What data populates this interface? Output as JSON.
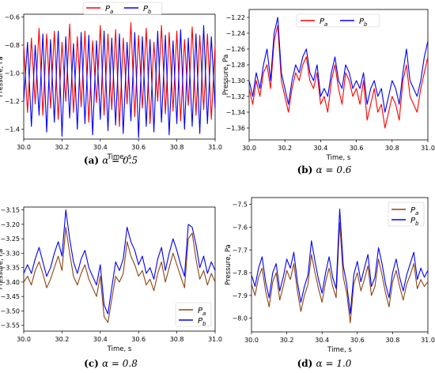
{
  "panels": [
    {
      "caption_tag": "(a)",
      "caption_text": "α = 0.5",
      "legend": [
        "P_a",
        "P_b"
      ],
      "legend_pos": "top-outside",
      "chart_data": {
        "type": "line",
        "xlabel": "Time, s",
        "ylabel": "Pressure, Pa",
        "xlim": [
          30.0,
          31.0
        ],
        "ylim": [
          -1.47,
          -0.58
        ],
        "xticks": [
          30.0,
          30.2,
          30.4,
          30.6,
          30.8,
          31.0
        ],
        "xtick_labels": [
          "30.0",
          "30.2",
          "30.4",
          "30.6",
          "30.8",
          "31.0"
        ],
        "yticks": [
          -1.4,
          -1.2,
          -1.0,
          -0.8,
          -0.6
        ],
        "ytick_labels": [
          "−1.4",
          "−1.2",
          "−1.0",
          "−0.8",
          "−0.6"
        ],
        "x_start": 30.0,
        "x_step": 0.02,
        "series": [
          {
            "name": "P_a",
            "color": "#ff0000",
            "values": [
              -0.8,
              -1.28,
              -0.75,
              -1.22,
              -0.68,
              -1.3,
              -0.72,
              -1.25,
              -0.7,
              -1.33,
              -0.78,
              -1.2,
              -0.65,
              -1.28,
              -0.74,
              -1.24,
              -0.7,
              -1.35,
              -0.77,
              -1.21,
              -0.66,
              -1.3,
              -0.72,
              -1.26,
              -0.69,
              -1.38,
              -0.75,
              -1.22,
              -0.64,
              -1.31,
              -0.73,
              -1.25,
              -0.68,
              -1.36,
              -0.78,
              -1.2,
              -0.66,
              -1.29,
              -0.71,
              -1.27,
              -0.7,
              -1.34,
              -0.76,
              -1.23,
              -0.67,
              -1.3,
              -0.73,
              -1.26,
              -0.72,
              -1.33,
              -0.8
            ]
          },
          {
            "name": "P_b",
            "color": "#0000ff",
            "values": [
              -1.2,
              -0.78,
              -1.38,
              -0.8,
              -1.3,
              -0.72,
              -1.42,
              -0.76,
              -1.35,
              -0.7,
              -1.45,
              -0.74,
              -1.32,
              -0.79,
              -1.4,
              -0.71,
              -1.36,
              -0.73,
              -1.44,
              -0.77,
              -1.33,
              -0.7,
              -1.41,
              -0.75,
              -1.37,
              -0.72,
              -1.43,
              -0.78,
              -1.34,
              -0.71,
              -1.46,
              -0.74,
              -1.38,
              -0.76,
              -1.42,
              -0.7,
              -1.35,
              -0.73,
              -1.44,
              -0.77,
              -1.36,
              -0.69,
              -1.4,
              -0.75,
              -1.38,
              -0.72,
              -1.43,
              -0.66,
              -1.36,
              -0.74,
              -1.25
            ]
          }
        ]
      }
    },
    {
      "caption_tag": "(b)",
      "caption_text": "α = 0.6",
      "legend": [
        "P_a",
        "P_b"
      ],
      "legend_pos": "top-right",
      "chart_data": {
        "type": "line",
        "xlabel": "Time, s",
        "ylabel": "Pressure, Pa",
        "xlim": [
          30.0,
          31.0
        ],
        "ylim": [
          -1.375,
          -1.21
        ],
        "xticks": [
          30.0,
          30.2,
          30.4,
          30.6,
          30.8,
          31.0
        ],
        "xtick_labels": [
          "30.0",
          "30.2",
          "30.4",
          "30.6",
          "30.8",
          "31.0"
        ],
        "yticks": [
          -1.36,
          -1.34,
          -1.32,
          -1.3,
          -1.28,
          -1.26,
          -1.24,
          -1.22
        ],
        "ytick_labels": [
          "−1.36",
          "−1.34",
          "−1.32",
          "−1.30",
          "−1.28",
          "−1.26",
          "−1.24",
          "−1.22"
        ],
        "x_start": 30.0,
        "x_step": 0.02,
        "series": [
          {
            "name": "P_a",
            "color": "#ff0000",
            "values": [
              -1.31,
              -1.33,
              -1.3,
              -1.32,
              -1.29,
              -1.28,
              -1.31,
              -1.25,
              -1.23,
              -1.3,
              -1.32,
              -1.34,
              -1.31,
              -1.29,
              -1.3,
              -1.28,
              -1.27,
              -1.3,
              -1.31,
              -1.29,
              -1.33,
              -1.32,
              -1.34,
              -1.3,
              -1.28,
              -1.31,
              -1.33,
              -1.29,
              -1.3,
              -1.32,
              -1.31,
              -1.33,
              -1.3,
              -1.35,
              -1.33,
              -1.31,
              -1.34,
              -1.33,
              -1.36,
              -1.34,
              -1.32,
              -1.33,
              -1.35,
              -1.3,
              -1.28,
              -1.32,
              -1.33,
              -1.34,
              -1.31,
              -1.29,
              -1.27
            ]
          },
          {
            "name": "P_b",
            "color": "#0000ff",
            "values": [
              -1.3,
              -1.32,
              -1.29,
              -1.31,
              -1.28,
              -1.26,
              -1.3,
              -1.24,
              -1.22,
              -1.29,
              -1.31,
              -1.33,
              -1.3,
              -1.28,
              -1.29,
              -1.27,
              -1.26,
              -1.29,
              -1.3,
              -1.28,
              -1.32,
              -1.31,
              -1.32,
              -1.29,
              -1.27,
              -1.3,
              -1.31,
              -1.28,
              -1.29,
              -1.31,
              -1.3,
              -1.31,
              -1.29,
              -1.33,
              -1.31,
              -1.3,
              -1.32,
              -1.31,
              -1.34,
              -1.32,
              -1.3,
              -1.31,
              -1.33,
              -1.29,
              -1.26,
              -1.3,
              -1.31,
              -1.32,
              -1.3,
              -1.27,
              -1.25
            ]
          }
        ]
      }
    },
    {
      "caption_tag": "(c)",
      "caption_text": "α = 0.8",
      "legend": [
        "P_a",
        "P_b"
      ],
      "legend_pos": "bottom-right",
      "chart_data": {
        "type": "line",
        "xlabel": "Time, s",
        "ylabel": "Pressure, Pa",
        "xlim": [
          30.0,
          31.0
        ],
        "ylim": [
          -3.57,
          -3.14
        ],
        "xticks": [
          30.0,
          30.2,
          30.4,
          30.6,
          30.8,
          31.0
        ],
        "xtick_labels": [
          "30.0",
          "30.2",
          "30.4",
          "30.6",
          "30.8",
          "31.0"
        ],
        "yticks": [
          -3.55,
          -3.5,
          -3.45,
          -3.4,
          -3.35,
          -3.3,
          -3.25,
          -3.2,
          -3.15
        ],
        "ytick_labels": [
          "−3.55",
          "−3.50",
          "−3.45",
          "−3.40",
          "−3.35",
          "−3.30",
          "−3.25",
          "−3.20",
          "−3.15"
        ],
        "x_start": 30.0,
        "x_step": 0.02,
        "series": [
          {
            "name": "P_a",
            "color": "#8b4513",
            "values": [
              -3.4,
              -3.38,
              -3.41,
              -3.36,
              -3.33,
              -3.37,
              -3.42,
              -3.39,
              -3.35,
              -3.31,
              -3.36,
              -3.21,
              -3.3,
              -3.38,
              -3.41,
              -3.37,
              -3.34,
              -3.39,
              -3.42,
              -3.45,
              -3.38,
              -3.52,
              -3.54,
              -3.46,
              -3.38,
              -3.4,
              -3.37,
              -3.26,
              -3.31,
              -3.34,
              -3.38,
              -3.36,
              -3.41,
              -3.39,
              -3.43,
              -3.37,
              -3.33,
              -3.4,
              -3.35,
              -3.3,
              -3.34,
              -3.38,
              -3.42,
              -3.25,
              -3.23,
              -3.32,
              -3.39,
              -3.36,
              -3.41,
              -3.37,
              -3.4
            ]
          },
          {
            "name": "P_b",
            "color": "#0000ff",
            "values": [
              -3.37,
              -3.34,
              -3.37,
              -3.32,
              -3.28,
              -3.33,
              -3.38,
              -3.35,
              -3.3,
              -3.26,
              -3.31,
              -3.15,
              -3.25,
              -3.33,
              -3.37,
              -3.32,
              -3.29,
              -3.35,
              -3.38,
              -3.41,
              -3.34,
              -3.48,
              -3.51,
              -3.42,
              -3.33,
              -3.36,
              -3.32,
              -3.21,
              -3.26,
              -3.29,
              -3.34,
              -3.31,
              -3.37,
              -3.35,
              -3.39,
              -3.32,
              -3.28,
              -3.36,
              -3.3,
              -3.25,
              -3.29,
              -3.34,
              -3.38,
              -3.2,
              -3.21,
              -3.27,
              -3.35,
              -3.31,
              -3.37,
              -3.33,
              -3.36
            ]
          }
        ]
      }
    },
    {
      "caption_tag": "(d)",
      "caption_text": "α = 1.0",
      "legend": [
        "P_a",
        "P_b"
      ],
      "legend_pos": "top-right",
      "chart_data": {
        "type": "line",
        "xlabel": "Time, s",
        "ylabel": "Pressure, Pa",
        "xlim": [
          30.0,
          31.0
        ],
        "ylim": [
          -8.06,
          -7.47
        ],
        "xticks": [
          30.0,
          30.2,
          30.4,
          30.6,
          30.8,
          31.0
        ],
        "xtick_labels": [
          "30.0",
          "30.2",
          "30.4",
          "30.6",
          "30.8",
          "31.0"
        ],
        "yticks": [
          -8.0,
          -7.9,
          -7.8,
          -7.7,
          -7.6,
          -7.5
        ],
        "ytick_labels": [
          "−8.0",
          "−7.9",
          "−7.8",
          "−7.7",
          "−7.6",
          "−7.5"
        ],
        "x_start": 30.0,
        "x_step": 0.02,
        "series": [
          {
            "name": "P_a",
            "color": "#8b4513",
            "values": [
              -7.85,
              -7.9,
              -7.82,
              -7.78,
              -7.88,
              -7.95,
              -7.84,
              -7.8,
              -7.92,
              -7.86,
              -7.79,
              -7.83,
              -7.76,
              -7.88,
              -7.97,
              -7.9,
              -7.85,
              -7.72,
              -7.8,
              -7.87,
              -7.93,
              -7.84,
              -7.78,
              -7.86,
              -7.91,
              -7.58,
              -7.82,
              -7.89,
              -8.02,
              -7.85,
              -7.8,
              -7.88,
              -7.83,
              -7.77,
              -7.9,
              -7.86,
              -7.74,
              -7.81,
              -7.89,
              -7.95,
              -7.84,
              -7.79,
              -7.86,
              -7.92,
              -7.85,
              -7.81,
              -7.76,
              -7.87,
              -7.83,
              -7.86,
              -7.84
            ]
          },
          {
            "name": "P_b",
            "color": "#0000ff",
            "values": [
              -7.81,
              -7.86,
              -7.78,
              -7.73,
              -7.84,
              -7.91,
              -7.8,
              -7.76,
              -7.88,
              -7.82,
              -7.74,
              -7.78,
              -7.71,
              -7.84,
              -7.93,
              -7.86,
              -7.81,
              -7.66,
              -7.75,
              -7.83,
              -7.89,
              -7.8,
              -7.73,
              -7.82,
              -7.87,
              -7.52,
              -7.77,
              -7.85,
              -7.98,
              -7.81,
              -7.75,
              -7.84,
              -7.78,
              -7.72,
              -7.86,
              -7.82,
              -7.69,
              -7.76,
              -7.85,
              -7.91,
              -7.8,
              -7.74,
              -7.82,
              -7.88,
              -7.81,
              -7.76,
              -7.71,
              -7.83,
              -7.78,
              -7.82,
              -7.79
            ]
          }
        ]
      }
    }
  ]
}
